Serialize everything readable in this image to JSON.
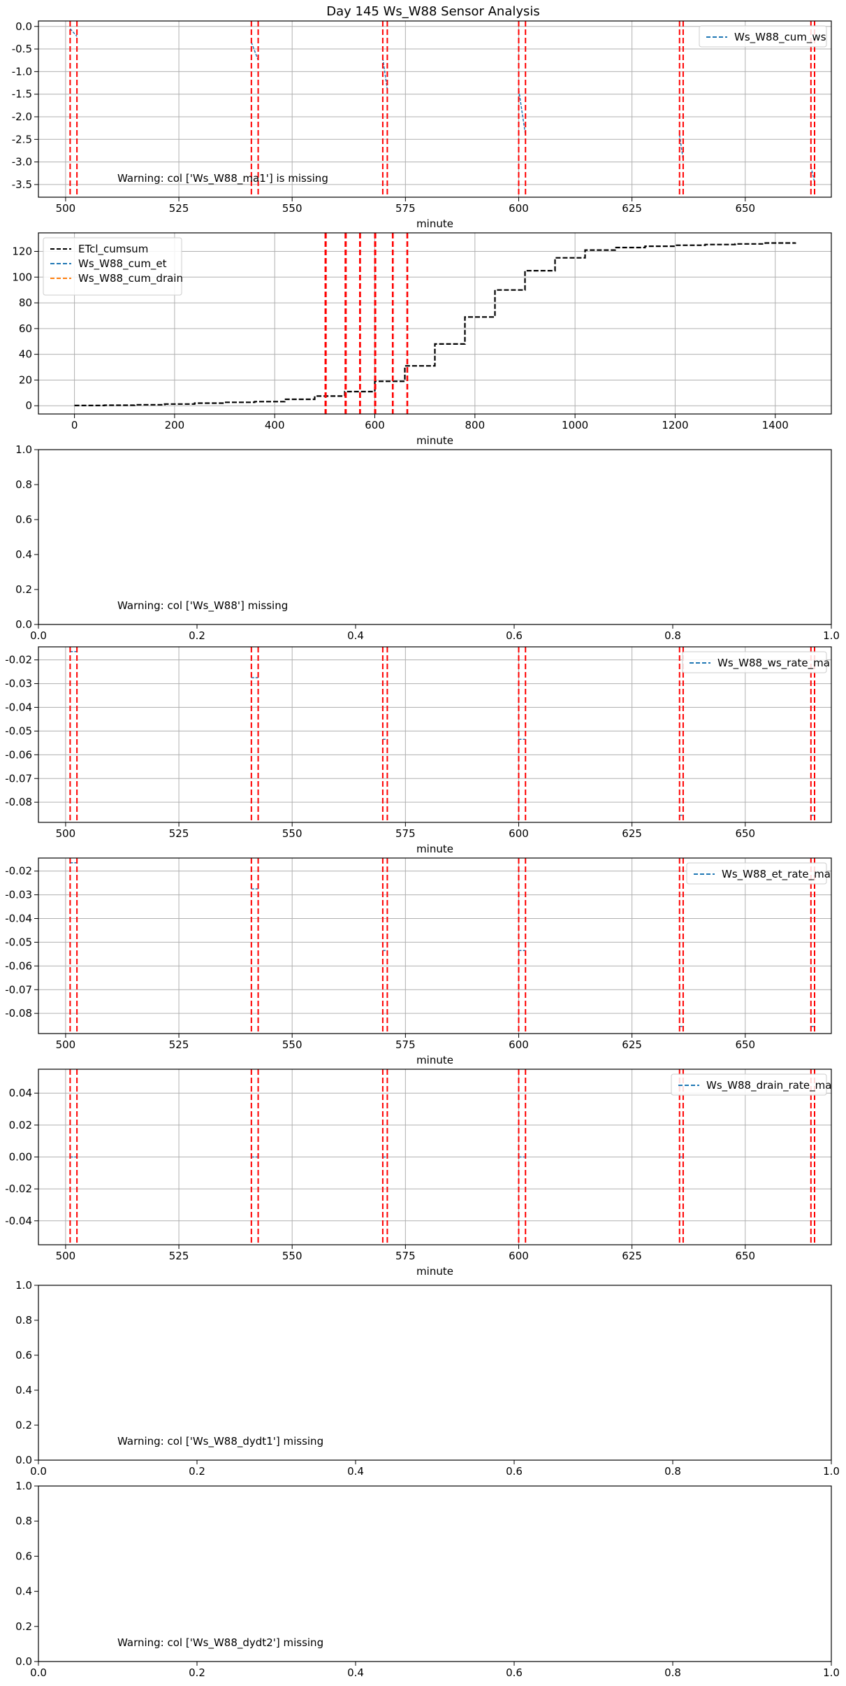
{
  "figure": {
    "title": "Day 145 Ws_W88 Sensor Analysis"
  },
  "colors": {
    "event_line": "#ff0000",
    "grid": "#b0b0b0",
    "blue": "#1f77b4",
    "orange": "#ff7f0e",
    "black": "#000000"
  },
  "chart_data": [
    {
      "type": "line",
      "xlabel": "minute",
      "xlim": [
        494,
        669
      ],
      "ylim": [
        -3.78,
        0.12
      ],
      "xticks": [
        500,
        525,
        550,
        575,
        600,
        625,
        650
      ],
      "yticks": [
        0.0,
        -0.5,
        -1.0,
        -1.5,
        -2.0,
        -2.5,
        -3.0,
        -3.5
      ],
      "ytick_labels": [
        "0.0",
        "-0.5",
        "-1.0",
        "-1.5",
        "-2.0",
        "-2.5",
        "-3.0",
        "-3.5"
      ],
      "grid": true,
      "event_lines": [
        501,
        502.5,
        541,
        542.5,
        570,
        571,
        600,
        601.5,
        635.5,
        636.3,
        664.5,
        665.3
      ],
      "series": [
        {
          "name": "Ws_W88_cum_ws",
          "color": "#1f77b4",
          "style": "dashed",
          "segments": [
            {
              "x": [
                501,
                502.5
              ],
              "y": [
                -0.05,
                -0.22
              ]
            },
            {
              "x": [
                541,
                542.5
              ],
              "y": [
                -0.35,
                -0.75
              ]
            },
            {
              "x": [
                570,
                571
              ],
              "y": [
                -0.7,
                -1.4
              ]
            },
            {
              "x": [
                600,
                601.5
              ],
              "y": [
                -1.4,
                -2.4
              ]
            },
            {
              "x": [
                635.5,
                636.3
              ],
              "y": [
                -2.4,
                -2.95
              ]
            },
            {
              "x": [
                664.5,
                665.3
              ],
              "y": [
                -3.1,
                -3.45
              ]
            }
          ]
        }
      ],
      "legend": "upper-right",
      "annotation": "Warning: col ['Ws_W88_ma1'] is missing"
    },
    {
      "type": "line",
      "xlabel": "minute",
      "xlim": [
        -72,
        1512
      ],
      "ylim": [
        -6.4,
        134.4
      ],
      "xticks": [
        0,
        200,
        400,
        600,
        800,
        1000,
        1200,
        1400
      ],
      "yticks": [
        0,
        20,
        40,
        60,
        80,
        100,
        120
      ],
      "grid": true,
      "event_lines": [
        501,
        502.5,
        541,
        542.5,
        570,
        571,
        600,
        601.5,
        635.5,
        636.3,
        664.5,
        665.3
      ],
      "series": [
        {
          "name": "ETcl_cumsum",
          "color": "#000000",
          "style": "dashed-step",
          "x": [
            0,
            60,
            120,
            180,
            240,
            300,
            360,
            420,
            480,
            540,
            600,
            660,
            720,
            780,
            840,
            900,
            960,
            1020,
            1080,
            1140,
            1200,
            1260,
            1320,
            1380,
            1440
          ],
          "y": [
            0.2,
            0.4,
            0.8,
            1.3,
            2.0,
            2.7,
            3.2,
            5.0,
            7.5,
            11.0,
            19.0,
            31.0,
            48.0,
            69.0,
            90.0,
            105.0,
            115.0,
            121.0,
            123.0,
            124.0,
            124.8,
            125.3,
            125.8,
            126.5,
            127.0
          ]
        },
        {
          "name": "Ws_W88_cum_et",
          "color": "#1f77b4",
          "style": "dashed"
        },
        {
          "name": "Ws_W88_cum_drain",
          "color": "#ff7f0e",
          "style": "dashed"
        }
      ],
      "legend": "upper-left"
    },
    {
      "type": "line",
      "xlim": [
        0,
        1
      ],
      "ylim": [
        0,
        1
      ],
      "xticks": [
        0.0,
        0.2,
        0.4,
        0.6,
        0.8,
        1.0
      ],
      "xtick_labels": [
        "0.0",
        "0.2",
        "0.4",
        "0.6",
        "0.8",
        "1.0"
      ],
      "yticks": [
        0.0,
        0.2,
        0.4,
        0.6,
        0.8,
        1.0
      ],
      "ytick_labels": [
        "0.0",
        "0.2",
        "0.4",
        "0.6",
        "0.8",
        "1.0"
      ],
      "grid": false,
      "annotation": "Warning: col ['Ws_W88'] missing"
    },
    {
      "type": "line",
      "xlabel": "minute",
      "xlim": [
        494,
        669
      ],
      "ylim": [
        -0.0885,
        -0.0145
      ],
      "xticks": [
        500,
        525,
        550,
        575,
        600,
        625,
        650
      ],
      "yticks": [
        -0.02,
        -0.03,
        -0.04,
        -0.05,
        -0.06,
        -0.07,
        -0.08
      ],
      "ytick_labels": [
        "-0.02",
        "-0.03",
        "-0.04",
        "-0.05",
        "-0.06",
        "-0.07",
        "-0.08"
      ],
      "grid": true,
      "event_lines": [
        501,
        502.5,
        541,
        542.5,
        570,
        571,
        600,
        601.5,
        635.5,
        636.3,
        664.5,
        665.3
      ],
      "series": [
        {
          "name": "Ws_W88_ws_rate_ma",
          "color": "#1f77b4",
          "style": "dashed",
          "segments": [
            {
              "x": [
                501,
                502.5
              ],
              "y": [
                -0.0165,
                -0.0165
              ]
            },
            {
              "x": [
                541,
                542.5
              ],
              "y": [
                -0.0275,
                -0.0275
              ]
            },
            {
              "x": [
                570,
                571
              ],
              "y": [
                -0.0535,
                -0.0535
              ]
            },
            {
              "x": [
                600,
                601.5
              ],
              "y": [
                -0.0535,
                -0.0535
              ]
            },
            {
              "x": [
                635.5,
                636.3
              ],
              "y": [
                -0.0855,
                -0.0855
              ]
            },
            {
              "x": [
                664.5,
                665.3
              ],
              "y": [
                -0.0855,
                -0.0855
              ]
            }
          ]
        }
      ],
      "legend": "upper-right"
    },
    {
      "type": "line",
      "xlabel": "minute",
      "xlim": [
        494,
        669
      ],
      "ylim": [
        -0.0885,
        -0.0145
      ],
      "xticks": [
        500,
        525,
        550,
        575,
        600,
        625,
        650
      ],
      "yticks": [
        -0.02,
        -0.03,
        -0.04,
        -0.05,
        -0.06,
        -0.07,
        -0.08
      ],
      "ytick_labels": [
        "-0.02",
        "-0.03",
        "-0.04",
        "-0.05",
        "-0.06",
        "-0.07",
        "-0.08"
      ],
      "grid": true,
      "event_lines": [
        501,
        502.5,
        541,
        542.5,
        570,
        571,
        600,
        601.5,
        635.5,
        636.3,
        664.5,
        665.3
      ],
      "series": [
        {
          "name": "Ws_W88_et_rate_ma",
          "color": "#1f77b4",
          "style": "dashed",
          "segments": [
            {
              "x": [
                501,
                502.5
              ],
              "y": [
                -0.0165,
                -0.0165
              ]
            },
            {
              "x": [
                541,
                542.5
              ],
              "y": [
                -0.0275,
                -0.0275
              ]
            },
            {
              "x": [
                570,
                571
              ],
              "y": [
                -0.0535,
                -0.0535
              ]
            },
            {
              "x": [
                600,
                601.5
              ],
              "y": [
                -0.0535,
                -0.0535
              ]
            },
            {
              "x": [
                635.5,
                636.3
              ],
              "y": [
                -0.0855,
                -0.0855
              ]
            },
            {
              "x": [
                664.5,
                665.3
              ],
              "y": [
                -0.0855,
                -0.0855
              ]
            }
          ]
        }
      ],
      "legend": "upper-right"
    },
    {
      "type": "line",
      "xlabel": "minute",
      "xlim": [
        494,
        669
      ],
      "ylim": [
        -0.055,
        0.055
      ],
      "xticks": [
        500,
        525,
        550,
        575,
        600,
        625,
        650
      ],
      "yticks": [
        0.04,
        0.02,
        0.0,
        -0.02,
        -0.04
      ],
      "ytick_labels": [
        "0.04",
        "0.02",
        "0.00",
        "-0.02",
        "-0.04"
      ],
      "grid": true,
      "event_lines": [
        501,
        502.5,
        541,
        542.5,
        570,
        571,
        600,
        601.5,
        635.5,
        636.3,
        664.5,
        665.3
      ],
      "series": [
        {
          "name": "Ws_W88_drain_rate_ma",
          "color": "#1f77b4",
          "style": "dashed",
          "segments": [
            {
              "x": [
                501,
                502.5
              ],
              "y": [
                0.0,
                0.0
              ]
            },
            {
              "x": [
                541,
                542.5
              ],
              "y": [
                0.0,
                0.0
              ]
            },
            {
              "x": [
                570,
                571
              ],
              "y": [
                0.0,
                0.0
              ]
            },
            {
              "x": [
                600,
                601.5
              ],
              "y": [
                0.0,
                0.0
              ]
            },
            {
              "x": [
                635.5,
                636.3
              ],
              "y": [
                0.0,
                0.0
              ]
            },
            {
              "x": [
                664.5,
                665.3
              ],
              "y": [
                0.0,
                0.0
              ]
            }
          ]
        }
      ],
      "legend": "upper-right"
    },
    {
      "type": "line",
      "xlim": [
        0,
        1
      ],
      "ylim": [
        0,
        1
      ],
      "xticks": [
        0.0,
        0.2,
        0.4,
        0.6,
        0.8,
        1.0
      ],
      "xtick_labels": [
        "0.0",
        "0.2",
        "0.4",
        "0.6",
        "0.8",
        "1.0"
      ],
      "yticks": [
        0.0,
        0.2,
        0.4,
        0.6,
        0.8,
        1.0
      ],
      "ytick_labels": [
        "0.0",
        "0.2",
        "0.4",
        "0.6",
        "0.8",
        "1.0"
      ],
      "grid": false,
      "annotation": "Warning: col ['Ws_W88_dydt1'] missing"
    },
    {
      "type": "line",
      "xlim": [
        0,
        1
      ],
      "ylim": [
        0,
        1
      ],
      "xticks": [
        0.0,
        0.2,
        0.4,
        0.6,
        0.8,
        1.0
      ],
      "xtick_labels": [
        "0.0",
        "0.2",
        "0.4",
        "0.6",
        "0.8",
        "1.0"
      ],
      "yticks": [
        0.0,
        0.2,
        0.4,
        0.6,
        0.8,
        1.0
      ],
      "ytick_labels": [
        "0.0",
        "0.2",
        "0.4",
        "0.6",
        "0.8",
        "1.0"
      ],
      "grid": false,
      "annotation": "Warning: col ['Ws_W88_dydt2'] missing"
    }
  ]
}
